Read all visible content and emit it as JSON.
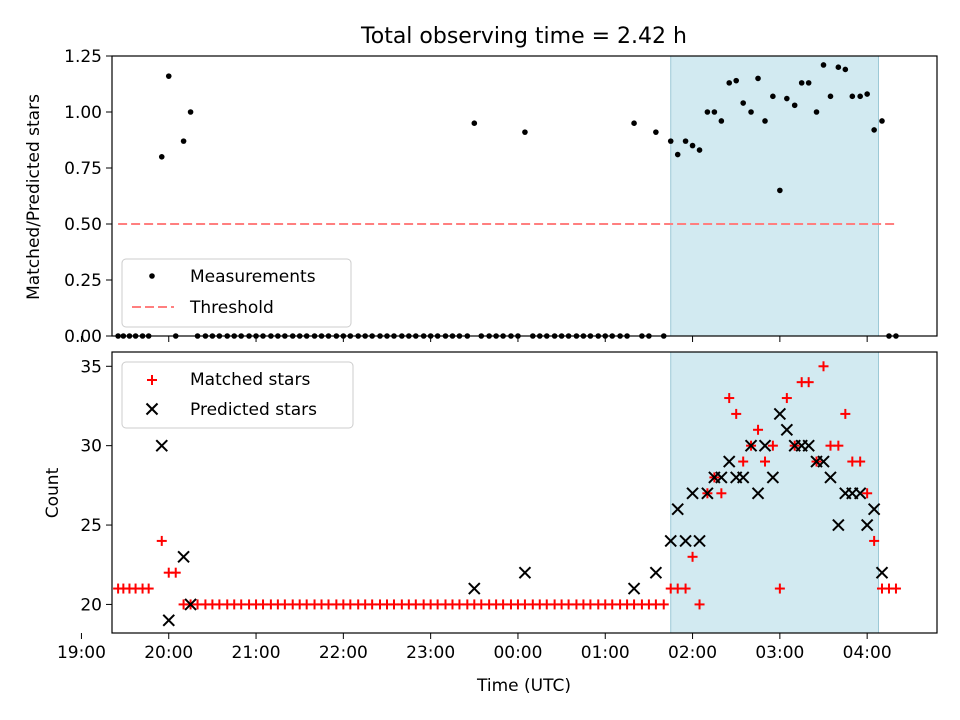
{
  "figure": {
    "title": "Total observing time = 2.42 h"
  },
  "chart_data": [
    {
      "type": "scatter",
      "ylabel": "Matched/Predicted stars",
      "xlim": [
        19.35,
        28.8
      ],
      "ylim": [
        0.0,
        1.25
      ],
      "yticks": [
        0.0,
        0.25,
        0.5,
        0.75,
        1.0,
        1.25
      ],
      "ytick_labels": [
        "0.00",
        "0.25",
        "0.50",
        "0.75",
        "1.00",
        "1.25"
      ],
      "grid": false,
      "legend_position": "lower-left",
      "shaded_span": [
        25.75,
        28.13
      ],
      "shade_color": "#add8e6",
      "series": [
        {
          "name": "Measurements",
          "kind": "dots",
          "color": "#000000",
          "points": [
            [
              19.42,
              0
            ],
            [
              19.48,
              0
            ],
            [
              19.55,
              0
            ],
            [
              19.62,
              0
            ],
            [
              19.7,
              0
            ],
            [
              19.77,
              0
            ],
            [
              19.92,
              0.8
            ],
            [
              20.0,
              1.16
            ],
            [
              20.08,
              0
            ],
            [
              20.17,
              0.87
            ],
            [
              20.25,
              1.0
            ],
            [
              20.33,
              0
            ],
            [
              20.42,
              0
            ],
            [
              20.5,
              0
            ],
            [
              20.58,
              0
            ],
            [
              20.67,
              0
            ],
            [
              20.75,
              0
            ],
            [
              20.83,
              0
            ],
            [
              20.92,
              0
            ],
            [
              21.0,
              0
            ],
            [
              21.08,
              0
            ],
            [
              21.17,
              0
            ],
            [
              21.25,
              0
            ],
            [
              21.33,
              0
            ],
            [
              21.42,
              0
            ],
            [
              21.5,
              0
            ],
            [
              21.58,
              0
            ],
            [
              21.67,
              0
            ],
            [
              21.75,
              0
            ],
            [
              21.83,
              0
            ],
            [
              21.92,
              0
            ],
            [
              22.0,
              0
            ],
            [
              22.08,
              0
            ],
            [
              22.17,
              0
            ],
            [
              22.25,
              0
            ],
            [
              22.33,
              0
            ],
            [
              22.42,
              0
            ],
            [
              22.5,
              0
            ],
            [
              22.58,
              0
            ],
            [
              22.67,
              0
            ],
            [
              22.75,
              0
            ],
            [
              22.83,
              0
            ],
            [
              22.92,
              0
            ],
            [
              23.0,
              0
            ],
            [
              23.08,
              0
            ],
            [
              23.17,
              0
            ],
            [
              23.25,
              0
            ],
            [
              23.33,
              0
            ],
            [
              23.42,
              0
            ],
            [
              23.5,
              0.95
            ],
            [
              23.58,
              0
            ],
            [
              23.67,
              0
            ],
            [
              23.75,
              0
            ],
            [
              23.83,
              0
            ],
            [
              23.92,
              0
            ],
            [
              24.0,
              0
            ],
            [
              24.08,
              0.91
            ],
            [
              24.17,
              0
            ],
            [
              24.25,
              0
            ],
            [
              24.33,
              0
            ],
            [
              24.42,
              0
            ],
            [
              24.5,
              0
            ],
            [
              24.58,
              0
            ],
            [
              24.67,
              0
            ],
            [
              24.75,
              0
            ],
            [
              24.83,
              0
            ],
            [
              24.92,
              0
            ],
            [
              25.0,
              0
            ],
            [
              25.08,
              0
            ],
            [
              25.17,
              0
            ],
            [
              25.25,
              0
            ],
            [
              25.33,
              0.95
            ],
            [
              25.42,
              0
            ],
            [
              25.5,
              0
            ],
            [
              25.58,
              0.91
            ],
            [
              25.67,
              0
            ],
            [
              25.75,
              0.87
            ],
            [
              25.83,
              0.81
            ],
            [
              25.92,
              0.87
            ],
            [
              26.0,
              0.85
            ],
            [
              26.08,
              0.83
            ],
            [
              26.17,
              1.0
            ],
            [
              26.25,
              1.0
            ],
            [
              26.33,
              0.96
            ],
            [
              26.42,
              1.13
            ],
            [
              26.5,
              1.14
            ],
            [
              26.58,
              1.04
            ],
            [
              26.67,
              1.0
            ],
            [
              26.75,
              1.15
            ],
            [
              26.83,
              0.96
            ],
            [
              26.92,
              1.07
            ],
            [
              27.0,
              0.65
            ],
            [
              27.08,
              1.06
            ],
            [
              27.17,
              1.03
            ],
            [
              27.25,
              1.13
            ],
            [
              27.33,
              1.13
            ],
            [
              27.42,
              1.0
            ],
            [
              27.5,
              1.21
            ],
            [
              27.58,
              1.07
            ],
            [
              27.67,
              1.2
            ],
            [
              27.75,
              1.19
            ],
            [
              27.83,
              1.07
            ],
            [
              27.92,
              1.07
            ],
            [
              28.0,
              1.08
            ],
            [
              28.08,
              0.92
            ],
            [
              28.17,
              0.96
            ],
            [
              28.25,
              0
            ],
            [
              28.33,
              0
            ]
          ]
        },
        {
          "name": "Threshold",
          "kind": "dashed-line",
          "color": "#ff7f7f",
          "x": [
            19.42,
            28.33
          ],
          "y": [
            0.5,
            0.5
          ]
        }
      ]
    },
    {
      "type": "scatter",
      "xlabel": "Time (UTC)",
      "ylabel": "Count",
      "xlim": [
        19.35,
        28.8
      ],
      "ylim": [
        18.2,
        35.9
      ],
      "yticks": [
        20,
        25,
        30,
        35
      ],
      "ytick_labels": [
        "20",
        "25",
        "30",
        "35"
      ],
      "xticks": [
        19,
        20,
        21,
        22,
        23,
        24,
        25,
        26,
        27,
        28
      ],
      "xtick_labels": [
        "19:00",
        "20:00",
        "21:00",
        "22:00",
        "23:00",
        "00:00",
        "01:00",
        "02:00",
        "03:00",
        "04:00"
      ],
      "grid": false,
      "legend_position": "top-left",
      "shaded_span": [
        25.75,
        28.13
      ],
      "shade_color": "#add8e6",
      "series": [
        {
          "name": "Matched stars",
          "kind": "plus",
          "color": "#ff0000",
          "points": [
            [
              19.42,
              21
            ],
            [
              19.48,
              21
            ],
            [
              19.55,
              21
            ],
            [
              19.62,
              21
            ],
            [
              19.7,
              21
            ],
            [
              19.77,
              21
            ],
            [
              19.92,
              24
            ],
            [
              20.0,
              22
            ],
            [
              20.08,
              22
            ],
            [
              20.17,
              20
            ],
            [
              20.25,
              20
            ],
            [
              20.33,
              20
            ],
            [
              20.42,
              20
            ],
            [
              20.5,
              20
            ],
            [
              20.58,
              20
            ],
            [
              20.67,
              20
            ],
            [
              20.75,
              20
            ],
            [
              20.83,
              20
            ],
            [
              20.92,
              20
            ],
            [
              21.0,
              20
            ],
            [
              21.08,
              20
            ],
            [
              21.17,
              20
            ],
            [
              21.25,
              20
            ],
            [
              21.33,
              20
            ],
            [
              21.42,
              20
            ],
            [
              21.5,
              20
            ],
            [
              21.58,
              20
            ],
            [
              21.67,
              20
            ],
            [
              21.75,
              20
            ],
            [
              21.83,
              20
            ],
            [
              21.92,
              20
            ],
            [
              22.0,
              20
            ],
            [
              22.08,
              20
            ],
            [
              22.17,
              20
            ],
            [
              22.25,
              20
            ],
            [
              22.33,
              20
            ],
            [
              22.42,
              20
            ],
            [
              22.5,
              20
            ],
            [
              22.58,
              20
            ],
            [
              22.67,
              20
            ],
            [
              22.75,
              20
            ],
            [
              22.83,
              20
            ],
            [
              22.92,
              20
            ],
            [
              23.0,
              20
            ],
            [
              23.08,
              20
            ],
            [
              23.17,
              20
            ],
            [
              23.25,
              20
            ],
            [
              23.33,
              20
            ],
            [
              23.42,
              20
            ],
            [
              23.5,
              20
            ],
            [
              23.58,
              20
            ],
            [
              23.67,
              20
            ],
            [
              23.75,
              20
            ],
            [
              23.83,
              20
            ],
            [
              23.92,
              20
            ],
            [
              24.0,
              20
            ],
            [
              24.08,
              20
            ],
            [
              24.17,
              20
            ],
            [
              24.25,
              20
            ],
            [
              24.33,
              20
            ],
            [
              24.42,
              20
            ],
            [
              24.5,
              20
            ],
            [
              24.58,
              20
            ],
            [
              24.67,
              20
            ],
            [
              24.75,
              20
            ],
            [
              24.83,
              20
            ],
            [
              24.92,
              20
            ],
            [
              25.0,
              20
            ],
            [
              25.08,
              20
            ],
            [
              25.17,
              20
            ],
            [
              25.25,
              20
            ],
            [
              25.33,
              20
            ],
            [
              25.42,
              20
            ],
            [
              25.5,
              20
            ],
            [
              25.58,
              20
            ],
            [
              25.67,
              20
            ],
            [
              25.75,
              21
            ],
            [
              25.83,
              21
            ],
            [
              25.92,
              21
            ],
            [
              26.0,
              23
            ],
            [
              26.08,
              20
            ],
            [
              26.17,
              27
            ],
            [
              26.25,
              28
            ],
            [
              26.33,
              27
            ],
            [
              26.42,
              33
            ],
            [
              26.5,
              32
            ],
            [
              26.58,
              29
            ],
            [
              26.67,
              30
            ],
            [
              26.75,
              31
            ],
            [
              26.83,
              29
            ],
            [
              26.92,
              30
            ],
            [
              27.0,
              21
            ],
            [
              27.08,
              33
            ],
            [
              27.17,
              30
            ],
            [
              27.25,
              34
            ],
            [
              27.33,
              34
            ],
            [
              27.42,
              29
            ],
            [
              27.5,
              35
            ],
            [
              27.58,
              30
            ],
            [
              27.67,
              30
            ],
            [
              27.75,
              32
            ],
            [
              27.83,
              29
            ],
            [
              27.92,
              29
            ],
            [
              28.0,
              27
            ],
            [
              28.08,
              24
            ],
            [
              28.17,
              21
            ],
            [
              28.25,
              21
            ],
            [
              28.33,
              21
            ]
          ]
        },
        {
          "name": "Predicted stars",
          "kind": "x",
          "color": "#000000",
          "points": [
            [
              19.92,
              30
            ],
            [
              20.0,
              19
            ],
            [
              20.17,
              23
            ],
            [
              20.25,
              20
            ],
            [
              23.5,
              21
            ],
            [
              24.08,
              22
            ],
            [
              25.33,
              21
            ],
            [
              25.58,
              22
            ],
            [
              25.75,
              24
            ],
            [
              25.83,
              26
            ],
            [
              25.92,
              24
            ],
            [
              26.0,
              27
            ],
            [
              26.08,
              24
            ],
            [
              26.17,
              27
            ],
            [
              26.25,
              28
            ],
            [
              26.33,
              28
            ],
            [
              26.42,
              29
            ],
            [
              26.5,
              28
            ],
            [
              26.58,
              28
            ],
            [
              26.67,
              30
            ],
            [
              26.75,
              27
            ],
            [
              26.83,
              30
            ],
            [
              26.92,
              28
            ],
            [
              27.0,
              32
            ],
            [
              27.08,
              31
            ],
            [
              27.17,
              30
            ],
            [
              27.25,
              30
            ],
            [
              27.33,
              30
            ],
            [
              27.42,
              29
            ],
            [
              27.5,
              29
            ],
            [
              27.58,
              28
            ],
            [
              27.67,
              25
            ],
            [
              27.75,
              27
            ],
            [
              27.83,
              27
            ],
            [
              27.92,
              27
            ],
            [
              28.0,
              25
            ],
            [
              28.08,
              26
            ],
            [
              28.17,
              22
            ]
          ]
        }
      ]
    }
  ]
}
